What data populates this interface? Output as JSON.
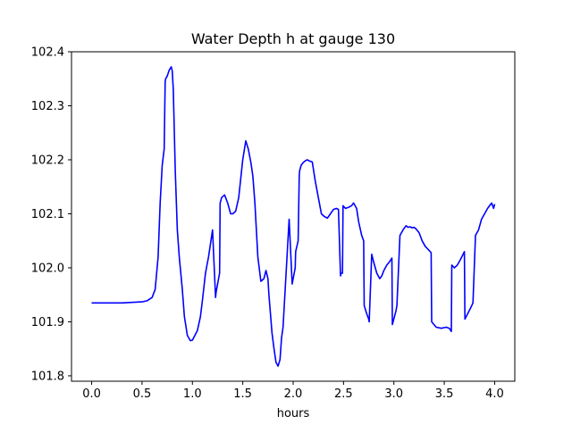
{
  "chart_data": {
    "type": "line",
    "title": "Water Depth h at gauge 130",
    "xlabel": "hours",
    "ylabel": "",
    "xlim": [
      -0.2,
      4.2
    ],
    "ylim": [
      101.79,
      102.4
    ],
    "xticks": [
      0.0,
      0.5,
      1.0,
      1.5,
      2.0,
      2.5,
      3.0,
      3.5,
      4.0
    ],
    "xtick_labels": [
      "0.0",
      "0.5",
      "1.0",
      "1.5",
      "2.0",
      "2.5",
      "3.0",
      "3.5",
      "4.0"
    ],
    "yticks": [
      101.8,
      101.9,
      102.0,
      102.1,
      102.2,
      102.3,
      102.4
    ],
    "ytick_labels": [
      "101.8",
      "101.9",
      "102.0",
      "102.1",
      "102.2",
      "102.3",
      "102.4"
    ],
    "grid": false,
    "series": [
      {
        "color": "#0000ff",
        "x": [
          0.0,
          0.1,
          0.2,
          0.3,
          0.4,
          0.5,
          0.55,
          0.6,
          0.63,
          0.66,
          0.68,
          0.7,
          0.72,
          0.73,
          0.735,
          0.75,
          0.77,
          0.79,
          0.8,
          0.81,
          0.83,
          0.85,
          0.87,
          0.9,
          0.92,
          0.95,
          0.98,
          1.0,
          1.02,
          1.05,
          1.08,
          1.1,
          1.13,
          1.16,
          1.2,
          1.23,
          1.235,
          1.27,
          1.275,
          1.29,
          1.32,
          1.35,
          1.38,
          1.4,
          1.43,
          1.46,
          1.5,
          1.53,
          1.555,
          1.58,
          1.6,
          1.62,
          1.65,
          1.68,
          1.71,
          1.73,
          1.75,
          1.76,
          1.79,
          1.81,
          1.83,
          1.85,
          1.87,
          1.885,
          1.9,
          1.93,
          1.96,
          1.99,
          2.02,
          2.025,
          2.05,
          2.06,
          2.065,
          2.08,
          2.1,
          2.12,
          2.14,
          2.16,
          2.19,
          2.22,
          2.25,
          2.28,
          2.31,
          2.34,
          2.37,
          2.4,
          2.43,
          2.45,
          2.47,
          2.475,
          2.49,
          2.495,
          2.52,
          2.55,
          2.58,
          2.6,
          2.63,
          2.65,
          2.68,
          2.7,
          2.705,
          2.73,
          2.75,
          2.755,
          2.78,
          2.8,
          2.83,
          2.86,
          2.88,
          2.9,
          2.93,
          2.96,
          2.98,
          2.985,
          3.02,
          3.03,
          3.06,
          3.09,
          3.12,
          3.14,
          3.16,
          3.18,
          3.2,
          3.22,
          3.25,
          3.28,
          3.31,
          3.37,
          3.375,
          3.42,
          3.47,
          3.52,
          3.55,
          3.57,
          3.575,
          3.6,
          3.63,
          3.66,
          3.7,
          3.705,
          3.76,
          3.785,
          3.81,
          3.84,
          3.87,
          3.9,
          3.93,
          3.95,
          3.97,
          3.99,
          4.0
        ],
        "y": [
          101.935,
          101.935,
          101.935,
          101.935,
          101.936,
          101.937,
          101.939,
          101.945,
          101.96,
          102.02,
          102.12,
          102.19,
          102.22,
          102.345,
          102.35,
          102.355,
          102.366,
          102.372,
          102.365,
          102.33,
          102.18,
          102.07,
          102.02,
          101.96,
          101.91,
          101.875,
          101.865,
          101.866,
          101.873,
          101.884,
          101.91,
          101.94,
          101.99,
          102.02,
          102.07,
          101.945,
          101.955,
          101.99,
          102.12,
          102.13,
          102.135,
          102.12,
          102.1,
          102.1,
          102.105,
          102.13,
          102.2,
          102.235,
          102.22,
          102.195,
          102.17,
          102.12,
          102.02,
          101.975,
          101.98,
          101.995,
          101.98,
          101.95,
          101.88,
          101.85,
          101.825,
          101.818,
          101.83,
          101.87,
          101.89,
          101.99,
          102.09,
          101.97,
          102.0,
          102.03,
          102.05,
          102.17,
          102.18,
          102.19,
          102.195,
          102.198,
          102.2,
          102.198,
          102.196,
          102.16,
          102.13,
          102.1,
          102.095,
          102.092,
          102.1,
          102.108,
          102.11,
          102.108,
          101.985,
          101.99,
          101.99,
          102.115,
          102.11,
          102.112,
          102.115,
          102.12,
          102.11,
          102.085,
          102.06,
          102.05,
          101.93,
          101.915,
          101.905,
          101.9,
          102.025,
          102.01,
          101.99,
          101.98,
          101.985,
          101.995,
          102.005,
          102.012,
          102.018,
          101.895,
          101.92,
          101.93,
          102.06,
          102.07,
          102.078,
          102.075,
          102.076,
          102.074,
          102.075,
          102.072,
          102.065,
          102.05,
          102.04,
          102.028,
          101.9,
          101.89,
          101.888,
          101.89,
          101.888,
          101.882,
          102.005,
          102.0,
          102.005,
          102.015,
          102.03,
          101.905,
          101.925,
          101.935,
          102.06,
          102.07,
          102.09,
          102.1,
          102.11,
          102.115,
          102.12,
          102.11,
          102.118
        ]
      }
    ]
  }
}
